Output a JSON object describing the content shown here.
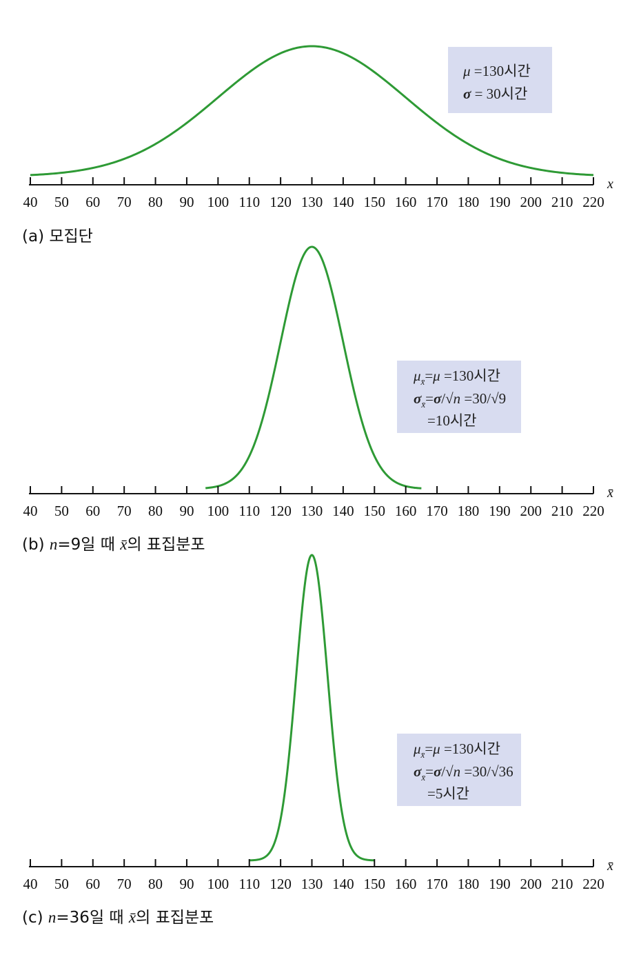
{
  "chart_data": [
    {
      "type": "line",
      "series": [
        {
          "name": "population density",
          "mean": 130,
          "sd": 30,
          "x_range": [
            40,
            220
          ],
          "color": "#2e9a35"
        }
      ],
      "x_ticks": [
        "40",
        "50",
        "60",
        "70",
        "80",
        "90",
        "100",
        "110",
        "120",
        "130",
        "140",
        "150",
        "160",
        "170",
        "180",
        "190",
        "200",
        "210",
        "220"
      ],
      "xlim": [
        40,
        220
      ],
      "axis_label": "x",
      "caption_prefix": "(a) ",
      "caption_text": "모집단",
      "info_box": {
        "line1_symbol": "μ",
        "line1_text": " =130시간",
        "line2_symbol": "σ",
        "line2_text": " =  30시간"
      }
    },
    {
      "type": "line",
      "series": [
        {
          "name": "sampling distribution n=9",
          "mean": 130,
          "sd": 10,
          "x_range": [
            96,
            165
          ],
          "color": "#2e9a35"
        }
      ],
      "x_ticks": [
        "40",
        "50",
        "60",
        "70",
        "80",
        "90",
        "100",
        "110",
        "120",
        "130",
        "140",
        "150",
        "160",
        "170",
        "180",
        "190",
        "200",
        "210",
        "220"
      ],
      "xlim": [
        40,
        220
      ],
      "axis_label": "x̄",
      "caption_prefix": "(b) ",
      "caption_n": "n",
      "caption_eq": "=9일 때 ",
      "caption_xbar": "x̄",
      "caption_rest": "의 표집분포",
      "info_box": {
        "l1_mu": "μ",
        "l1_sub": "x̄",
        "l1_eq": "=",
        "l1_mu2": "μ",
        "l1_val": " =130시간",
        "l2_sigma": "σ",
        "l2_sub": "x̄",
        "l2_eq": "=",
        "l2_sigma2": "σ",
        "l2_div": "/√",
        "l2_n": "n",
        "l2_val": " =30/√9",
        "l3_val": "=10시간"
      }
    },
    {
      "type": "line",
      "series": [
        {
          "name": "sampling distribution n=36",
          "mean": 130,
          "sd": 5,
          "x_range": [
            110,
            150
          ],
          "color": "#2e9a35"
        }
      ],
      "x_ticks": [
        "40",
        "50",
        "60",
        "70",
        "80",
        "90",
        "100",
        "110",
        "120",
        "130",
        "140",
        "150",
        "160",
        "170",
        "180",
        "190",
        "200",
        "210",
        "220"
      ],
      "xlim": [
        40,
        220
      ],
      "axis_label": "x̄",
      "caption_prefix": "(c) ",
      "caption_n": "n",
      "caption_eq": "=36일 때 ",
      "caption_xbar": "x̄",
      "caption_rest": "의 표집분포",
      "info_box": {
        "l1_mu": "μ",
        "l1_sub": "x̄",
        "l1_eq": "=",
        "l1_mu2": "μ",
        "l1_val": " =130시간",
        "l2_sigma": "σ",
        "l2_sub": "x̄",
        "l2_eq": "=",
        "l2_sigma2": "σ",
        "l2_div": "/√",
        "l2_n": "n",
        "l2_val": " =30/√36",
        "l3_val": "=5시간"
      }
    }
  ],
  "colors": {
    "curve": "#2e9a35",
    "box": "#d8dcf0",
    "axis": "#111111"
  }
}
